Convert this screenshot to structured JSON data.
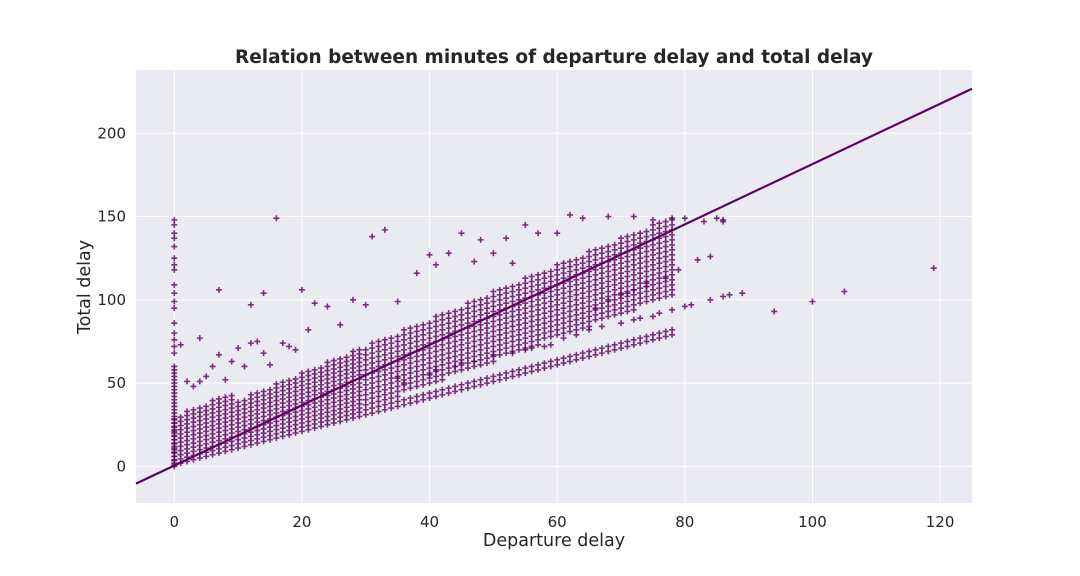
{
  "chart_data": {
    "type": "scatter",
    "title": "Relation between minutes of departure delay and total delay",
    "xlabel": "Departure delay",
    "ylabel": "Total delay",
    "xlim": [
      -6,
      125
    ],
    "ylim": [
      -22,
      238
    ],
    "xticks": [
      0,
      20,
      40,
      60,
      80,
      100,
      120
    ],
    "yticks": [
      0,
      50,
      100,
      150,
      200
    ],
    "grid": true,
    "marker": "+",
    "color": "#5e005e",
    "background": "#eaeaf2",
    "regression_line": {
      "slope": 1.81,
      "intercept": 0.5
    },
    "points": [
      [
        0,
        148
      ],
      [
        0,
        145
      ],
      [
        0,
        140
      ],
      [
        0,
        137
      ],
      [
        0,
        132
      ],
      [
        0,
        125
      ],
      [
        0,
        121
      ],
      [
        0,
        118
      ],
      [
        0,
        109
      ],
      [
        0,
        104
      ],
      [
        0,
        99
      ],
      [
        0,
        95
      ],
      [
        0,
        86
      ],
      [
        0,
        80
      ],
      [
        0,
        76
      ],
      [
        0,
        72
      ],
      [
        0,
        68
      ],
      [
        1,
        73
      ],
      [
        2,
        51
      ],
      [
        3,
        48
      ],
      [
        4,
        51
      ],
      [
        5,
        54
      ],
      [
        6,
        60
      ],
      [
        7,
        67
      ],
      [
        8,
        52
      ],
      [
        9,
        63
      ],
      [
        10,
        71
      ],
      [
        11,
        60
      ],
      [
        12,
        74
      ],
      [
        13,
        75
      ],
      [
        14,
        68
      ],
      [
        15,
        61
      ],
      [
        16,
        149
      ],
      [
        17,
        74
      ],
      [
        18,
        72
      ],
      [
        20,
        106
      ],
      [
        19,
        70
      ],
      [
        21,
        82
      ],
      [
        14,
        104
      ],
      [
        12,
        97
      ],
      [
        7,
        106
      ],
      [
        4,
        77
      ],
      [
        22,
        98
      ],
      [
        24,
        96
      ],
      [
        26,
        85
      ],
      [
        28,
        100
      ],
      [
        30,
        97
      ],
      [
        31,
        138
      ],
      [
        33,
        142
      ],
      [
        35,
        99
      ],
      [
        38,
        116
      ],
      [
        40,
        127
      ],
      [
        41,
        121
      ],
      [
        43,
        128
      ],
      [
        45,
        140
      ],
      [
        47,
        123
      ],
      [
        48,
        136
      ],
      [
        50,
        128
      ],
      [
        52,
        137
      ],
      [
        53,
        122
      ],
      [
        55,
        145
      ],
      [
        57,
        140
      ],
      [
        60,
        140
      ],
      [
        62,
        151
      ],
      [
        64,
        149
      ],
      [
        68,
        150
      ],
      [
        72,
        150
      ],
      [
        75,
        148
      ],
      [
        78,
        149
      ],
      [
        80,
        149
      ],
      [
        83,
        147
      ],
      [
        85,
        149
      ],
      [
        86,
        148
      ],
      [
        86,
        147
      ],
      [
        35,
        53
      ],
      [
        36,
        50
      ],
      [
        40,
        55
      ],
      [
        41,
        58
      ],
      [
        44,
        60
      ],
      [
        45,
        62
      ],
      [
        47,
        63
      ],
      [
        50,
        67
      ],
      [
        53,
        68
      ],
      [
        55,
        70
      ],
      [
        56,
        71
      ],
      [
        58,
        72
      ],
      [
        59,
        73
      ],
      [
        61,
        77
      ],
      [
        63,
        79
      ],
      [
        65,
        82
      ],
      [
        67,
        84
      ],
      [
        70,
        86
      ],
      [
        72,
        88
      ],
      [
        73,
        89
      ],
      [
        75,
        90
      ],
      [
        76,
        92
      ],
      [
        78,
        94
      ],
      [
        80,
        96
      ],
      [
        81,
        97
      ],
      [
        84,
        100
      ],
      [
        86,
        102
      ],
      [
        87,
        103
      ],
      [
        89,
        104
      ],
      [
        94,
        93
      ],
      [
        100,
        99
      ],
      [
        105,
        105
      ],
      [
        119,
        119
      ],
      [
        66,
        95
      ],
      [
        71,
        104
      ],
      [
        74,
        108
      ],
      [
        77,
        113
      ],
      [
        79,
        118
      ],
      [
        82,
        124
      ],
      [
        84,
        126
      ],
      [
        68,
        100
      ],
      [
        70,
        103
      ],
      [
        72,
        106
      ],
      [
        74,
        110
      ]
    ]
  }
}
